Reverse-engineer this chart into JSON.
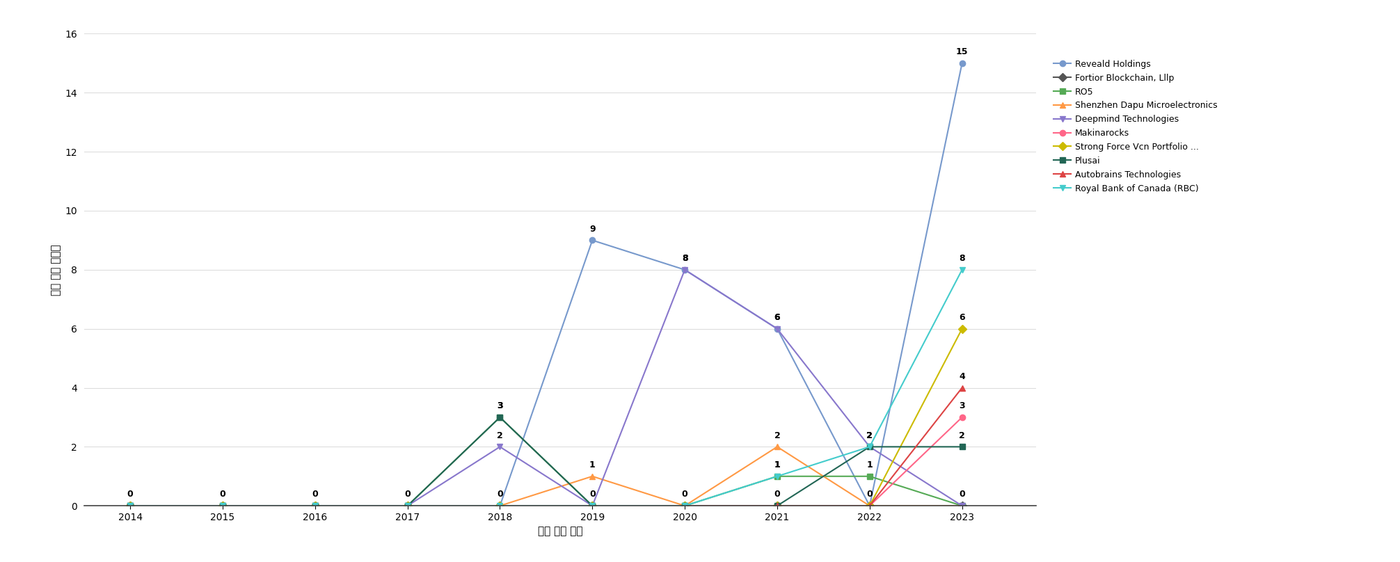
{
  "years": [
    2014,
    2015,
    2016,
    2017,
    2018,
    2019,
    2020,
    2021,
    2022,
    2023
  ],
  "series": [
    {
      "name": "Reveald Holdings",
      "color": "#7799CC",
      "marker": "o",
      "values": [
        0,
        0,
        0,
        0,
        0,
        9,
        8,
        6,
        0,
        15
      ]
    },
    {
      "name": "Fortior Blockchain, Lllp",
      "color": "#555555",
      "marker": "D",
      "values": [
        0,
        0,
        0,
        0,
        0,
        0,
        0,
        0,
        0,
        0
      ]
    },
    {
      "name": "RO5",
      "color": "#55AA55",
      "marker": "s",
      "values": [
        0,
        0,
        0,
        0,
        3,
        0,
        0,
        1,
        1,
        0
      ]
    },
    {
      "name": "Shenzhen Dapu Microelectronics",
      "color": "#FF9944",
      "marker": "^",
      "values": [
        0,
        0,
        0,
        0,
        0,
        1,
        0,
        2,
        0,
        0
      ]
    },
    {
      "name": "Deepmind Technologies",
      "color": "#8877CC",
      "marker": "v",
      "values": [
        0,
        0,
        0,
        0,
        2,
        0,
        8,
        6,
        2,
        0
      ]
    },
    {
      "name": "Makinarocks",
      "color": "#FF6688",
      "marker": "o",
      "values": [
        0,
        0,
        0,
        0,
        0,
        0,
        0,
        0,
        0,
        3
      ]
    },
    {
      "name": "Strong Force Vcn Portfolio ...",
      "color": "#CCBB00",
      "marker": "D",
      "values": [
        0,
        0,
        0,
        0,
        0,
        0,
        0,
        0,
        0,
        6
      ]
    },
    {
      "name": "Plusai",
      "color": "#226655",
      "marker": "s",
      "values": [
        0,
        0,
        0,
        0,
        3,
        0,
        0,
        0,
        2,
        2
      ]
    },
    {
      "name": "Autobrains Technologies",
      "color": "#DD4444",
      "marker": "^",
      "values": [
        0,
        0,
        0,
        0,
        0,
        0,
        0,
        0,
        0,
        4
      ]
    },
    {
      "name": "Royal Bank of Canada (RBC)",
      "color": "#44CCCC",
      "marker": "v",
      "values": [
        0,
        0,
        0,
        0,
        0,
        0,
        0,
        1,
        2,
        8
      ]
    }
  ],
  "xlabel": "특허 발행 연도",
  "ylabel": "특허 출원 공개량",
  "ylim": [
    0,
    16
  ],
  "yticks": [
    0,
    2,
    4,
    6,
    8,
    10,
    12,
    14,
    16
  ],
  "xlim_left": 2013.5,
  "xlim_right": 2023.8,
  "grid_color": "#DDDDDD",
  "label_fontsize": 9,
  "axis_fontsize": 11,
  "legend_fontsize": 9,
  "linewidth": 1.5,
  "markersize": 6
}
